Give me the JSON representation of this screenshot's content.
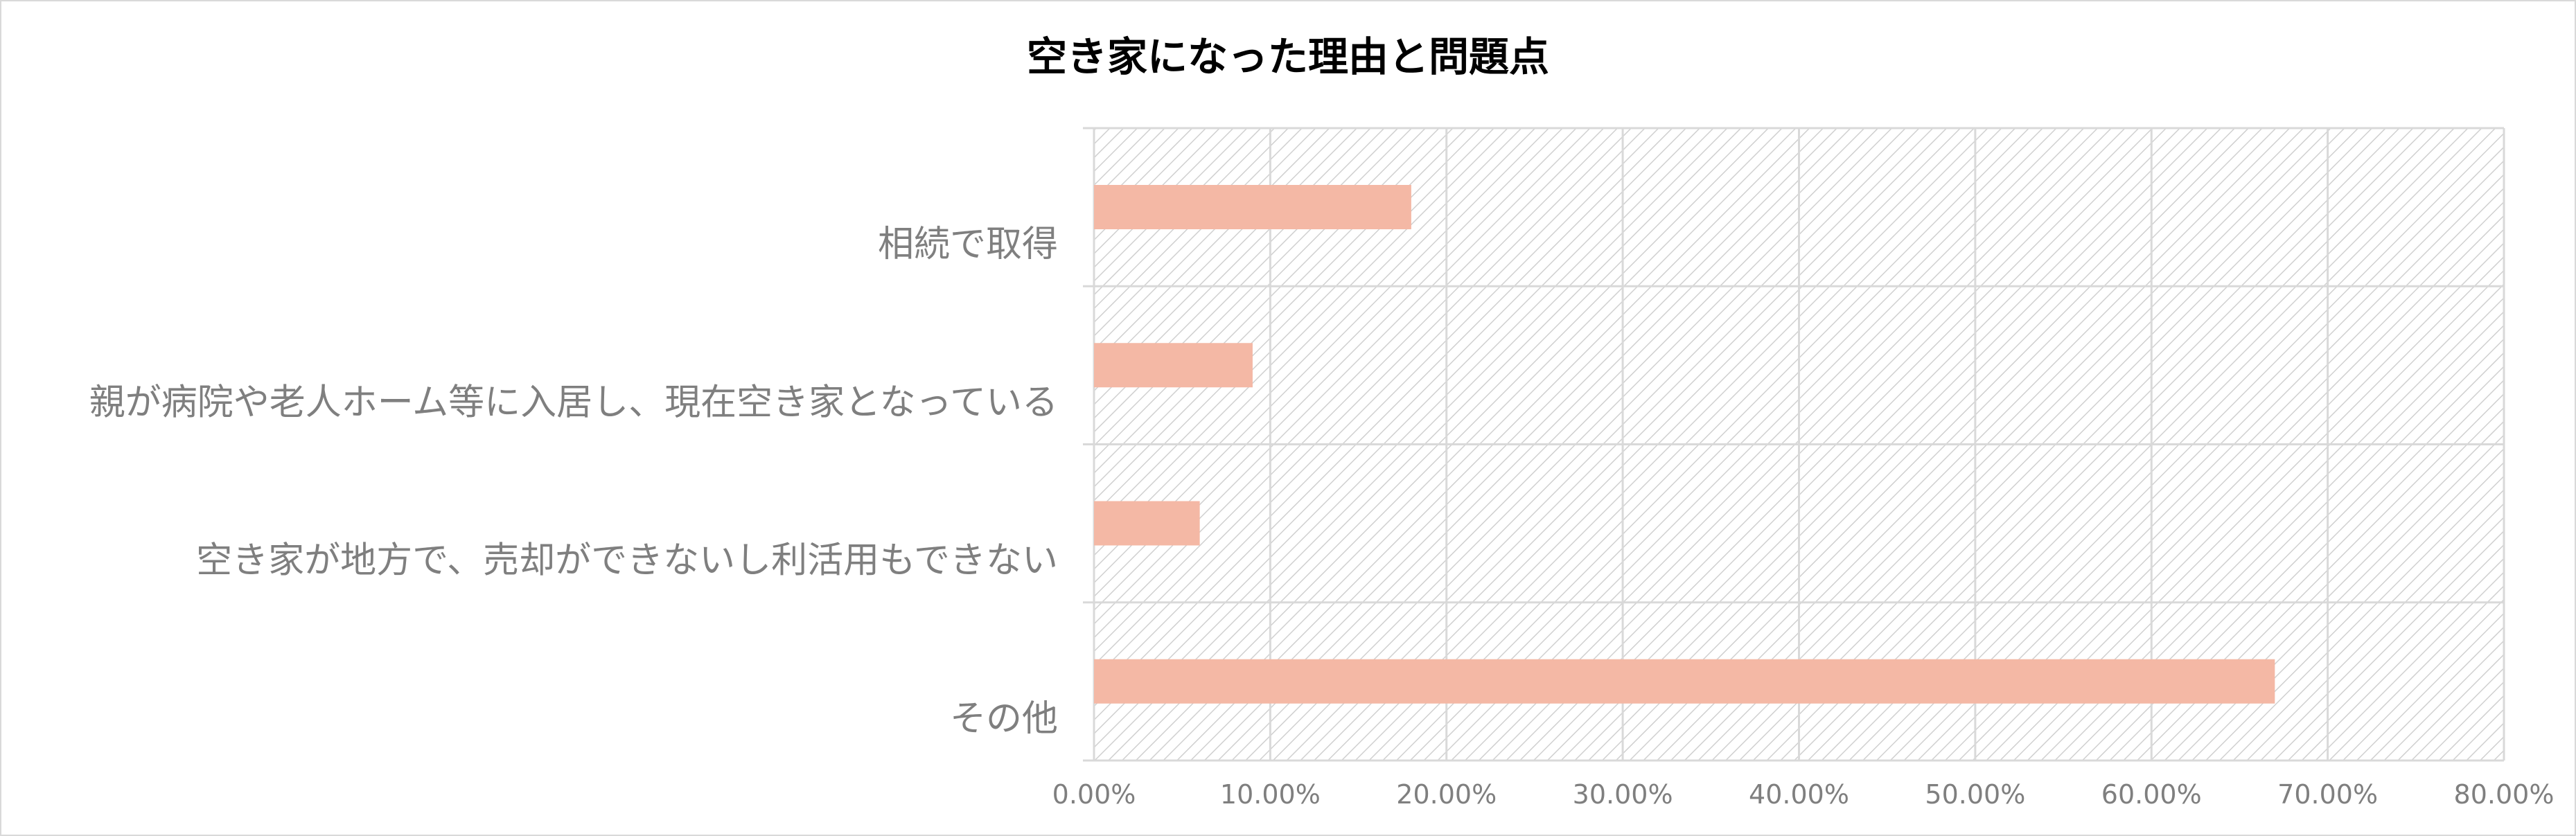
{
  "chart_data": {
    "type": "bar",
    "orientation": "horizontal",
    "title": "空き家になった理由と問題点",
    "categories": [
      "相続で取得",
      "親が病院や老人ホーム等に入居し、現在空き家となっている",
      "空き家が地方で、売却ができないし利活用もできない",
      "その他"
    ],
    "values": [
      0.18,
      0.09,
      0.06,
      0.67
    ],
    "xlim": [
      0,
      0.8
    ],
    "x_ticks": [
      0,
      0.1,
      0.2,
      0.3,
      0.4,
      0.5,
      0.6,
      0.7,
      0.8
    ],
    "x_tick_labels": [
      "0.00%",
      "10.00%",
      "20.00%",
      "30.00%",
      "40.00%",
      "50.00%",
      "60.00%",
      "70.00%",
      "80.00%"
    ],
    "xlabel": "",
    "ylabel": "",
    "grid": true,
    "plot_background": "diagonal-hatch",
    "legend": "none",
    "colors": {
      "bar": "#f4b8a5",
      "grid": "#d9d9d9",
      "hatch": "#d0d0d0",
      "axis_text": "#7f7f7f",
      "title": "#000000"
    }
  }
}
